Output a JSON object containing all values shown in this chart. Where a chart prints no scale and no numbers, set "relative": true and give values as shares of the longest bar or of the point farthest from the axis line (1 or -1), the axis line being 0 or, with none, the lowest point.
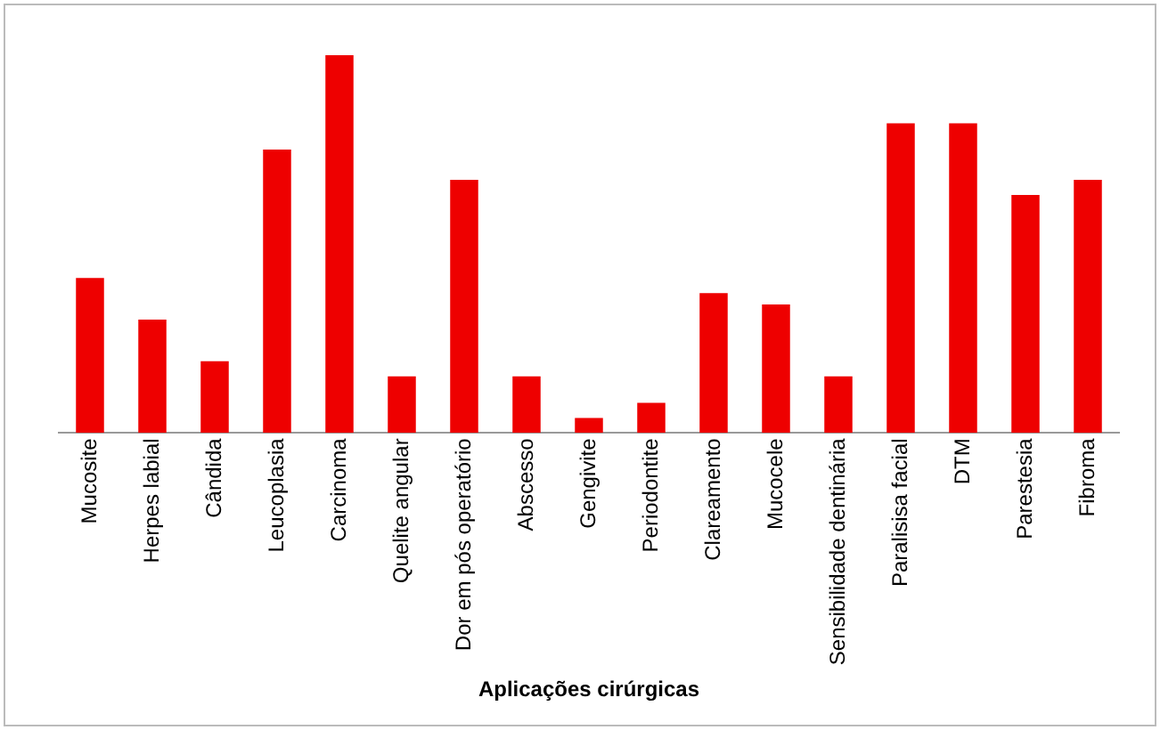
{
  "chart_data": {
    "type": "bar",
    "xlabel": "Aplicações cirúrgicas",
    "relative": true,
    "color": "#ee0000",
    "grid": false,
    "legend": false,
    "categories": [
      "Mucosite",
      "Herpes labial",
      "Cândida",
      "Leucoplasia",
      "Carcinoma",
      "Quelite angular",
      "Dor em pós operatório",
      "Abscesso",
      "Gengivite",
      "Periodontite",
      "Clareamento",
      "Mucocele",
      "Sensibilidade dentinária",
      "Paralisisa facial",
      "DTM",
      "Parestesia",
      "Fibroma"
    ],
    "values": [
      0.41,
      0.3,
      0.19,
      0.75,
      1,
      0.15,
      0.67,
      0.15,
      0.04,
      0.08,
      0.37,
      0.34,
      0.15,
      0.82,
      0.82,
      0.63,
      0.67
    ]
  }
}
